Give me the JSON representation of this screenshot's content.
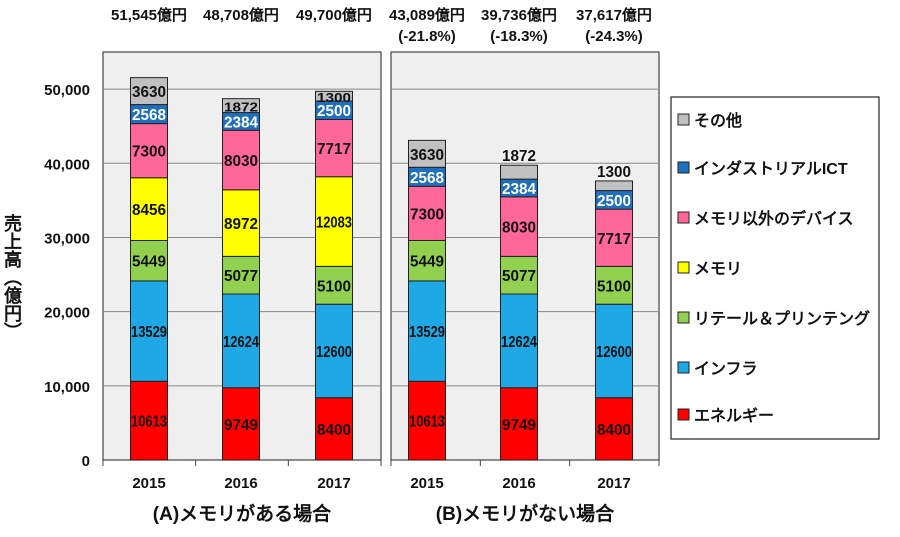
{
  "chart_data": {
    "type": "bar",
    "stacked": true,
    "ylabel": "売上高（億円）",
    "ylim": [
      0,
      55000
    ],
    "yticks": [
      "0",
      "10,000",
      "20,000",
      "30,000",
      "40,000",
      "50,000"
    ],
    "ytick_values": [
      0,
      10000,
      20000,
      30000,
      40000,
      50000
    ],
    "grid": true,
    "legend_position": "right",
    "series": [
      {
        "name": "エネルギー",
        "color": "#ff0000"
      },
      {
        "name": "インフラ",
        "color": "#1ea9e6"
      },
      {
        "name": "リテール＆プリンテング",
        "color": "#92d050"
      },
      {
        "name": "メモリ",
        "color": "#ffff00"
      },
      {
        "name": "メモリ以外のデバイス",
        "color": "#ff6699"
      },
      {
        "name": "インダストリアルICT",
        "color": "#1f6fbf"
      },
      {
        "name": "その他",
        "color": "#c0c0c0"
      }
    ],
    "legend_order": [
      "その他",
      "インダストリアルICT",
      "メモリ以外のデバイス",
      "メモリ",
      "リテール＆プリンテング",
      "インフラ",
      "エネルギー"
    ],
    "panels": [
      {
        "title": "(A)メモリがある場合",
        "categories": [
          "2015",
          "2016",
          "2017"
        ],
        "totals": [
          "51,545億円",
          "48,708億円",
          "49,700億円"
        ],
        "changes": [
          "",
          "",
          ""
        ],
        "values": [
          [
            10613,
            13529,
            5449,
            8456,
            7300,
            2568,
            3630
          ],
          [
            9749,
            12624,
            5077,
            8972,
            8030,
            2384,
            1872
          ],
          [
            8400,
            12600,
            5100,
            12083,
            7717,
            2500,
            1300
          ]
        ]
      },
      {
        "title": "(B)メモリがない場合",
        "categories": [
          "2015",
          "2016",
          "2017"
        ],
        "totals": [
          "43,089億円",
          "39,736億円",
          "37,617億円"
        ],
        "changes": [
          "(-21.8%)",
          "(-18.3%)",
          "(-24.3%)"
        ],
        "values": [
          [
            10613,
            13529,
            5449,
            0,
            7300,
            2568,
            3630
          ],
          [
            9749,
            12624,
            5077,
            0,
            8030,
            2384,
            1872
          ],
          [
            8400,
            12600,
            5100,
            0,
            7717,
            2500,
            1300
          ]
        ]
      }
    ]
  }
}
